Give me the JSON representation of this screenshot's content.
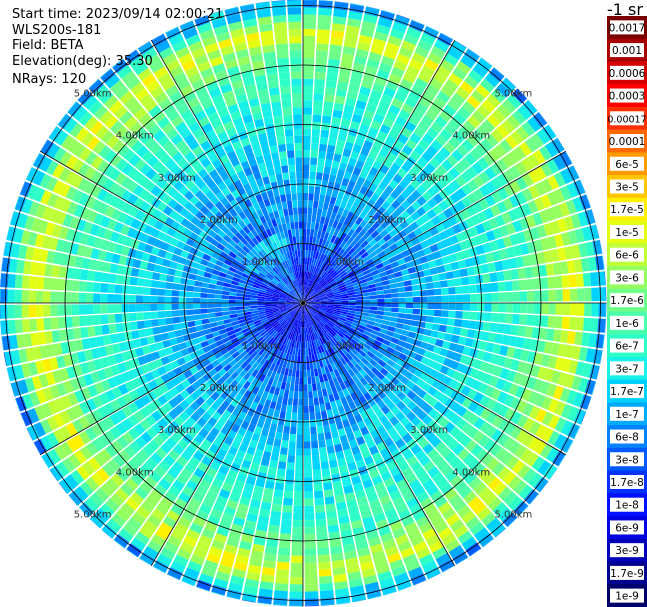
{
  "header": {
    "start_time": "Start time: 2023/09/14 02:00:21",
    "device": "WLS200s-181",
    "field": "Field: BETA",
    "elevation": "Elevation(deg): 35.30",
    "nrays": "NRays: 120"
  },
  "colorbar": {
    "unit_label": "-1 sr",
    "labels": [
      "0.0017",
      "0.001",
      "0.0006",
      "0.0003",
      "0.00017",
      "0.0001",
      "6e-5",
      "3e-5",
      "1.7e-5",
      "1e-5",
      "6e-6",
      "3e-6",
      "1.7e-6",
      "1e-6",
      "6e-7",
      "3e-7",
      "1.7e-7",
      "1e-7",
      "6e-8",
      "3e-8",
      "1.7e-8",
      "1e-8",
      "6e-9",
      "3e-9",
      "1.7e-9",
      "1e-9"
    ],
    "colors": [
      "#7a0000",
      "#a80000",
      "#d40000",
      "#ff0000",
      "#ff3000",
      "#ff6a00",
      "#ff9a00",
      "#ffc600",
      "#fff000",
      "#e4ff14",
      "#bfff38",
      "#96ff60",
      "#70ff88",
      "#4cffaa",
      "#2effc8",
      "#18f0e8",
      "#00d2ff",
      "#00aaff",
      "#0082ff",
      "#005aff",
      "#0032ff",
      "#0010ff",
      "#0000e0",
      "#0000b8",
      "#000090",
      "#00006a"
    ]
  },
  "chart_data": {
    "type": "heatmap",
    "projection": "polar",
    "field": "BETA",
    "rays": 120,
    "range_ring_labels": [
      "1.00km",
      "2.00km",
      "3.00km",
      "4.00km",
      "5.00km"
    ],
    "range_rings_km": [
      1,
      2,
      3,
      4,
      5
    ],
    "max_range_km": 5.1,
    "radial_profile": [
      {
        "range_km": 0.5,
        "level": "1e-8"
      },
      {
        "range_km": 1.0,
        "level": "3e-8"
      },
      {
        "range_km": 1.5,
        "level": "6e-8"
      },
      {
        "range_km": 2.0,
        "level": "1e-7"
      },
      {
        "range_km": 2.5,
        "level": "1.7e-7"
      },
      {
        "range_km": 3.0,
        "level": "3e-7"
      },
      {
        "range_km": 3.5,
        "level": "6e-7"
      },
      {
        "range_km": 4.0,
        "level": "1e-6"
      },
      {
        "range_km": 4.3,
        "level": "3e-6"
      },
      {
        "range_km": 4.5,
        "level": "1e-5"
      },
      {
        "range_km": 4.7,
        "level": "3e-6"
      },
      {
        "range_km": 5.0,
        "level": "1e-7"
      }
    ],
    "colorscale": "log",
    "vmin": "1e-9",
    "vmax": "0.0017"
  }
}
